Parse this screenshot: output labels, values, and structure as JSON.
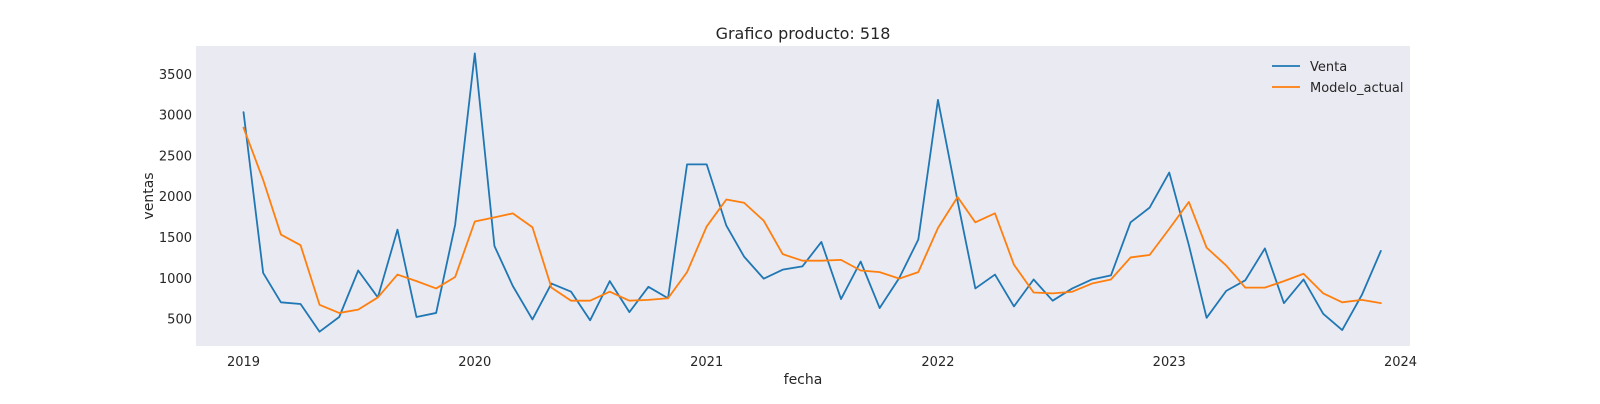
{
  "chart_data": {
    "type": "line",
    "title": "Grafico producto: 518",
    "xlabel": "fecha",
    "ylabel": "ventas",
    "x_ticks": [
      "2019",
      "2020",
      "2021",
      "2022",
      "2023",
      "2024"
    ],
    "y_ticks": [
      500,
      1000,
      1500,
      2000,
      2500,
      3000,
      3500
    ],
    "xlim": [
      "2018-10-18",
      "2024-01-16"
    ],
    "ylim": [
      165,
      3840
    ],
    "grid": false,
    "legend": "top-right",
    "x": [
      "2019-01",
      "2019-02",
      "2019-03",
      "2019-04",
      "2019-05",
      "2019-06",
      "2019-07",
      "2019-08",
      "2019-09",
      "2019-10",
      "2019-11",
      "2019-12",
      "2020-01",
      "2020-02",
      "2020-03",
      "2020-04",
      "2020-05",
      "2020-06",
      "2020-07",
      "2020-08",
      "2020-09",
      "2020-10",
      "2020-11",
      "2020-12",
      "2021-01",
      "2021-02",
      "2021-03",
      "2021-04",
      "2021-05",
      "2021-06",
      "2021-07",
      "2021-08",
      "2021-09",
      "2021-10",
      "2021-11",
      "2021-12",
      "2022-01",
      "2022-02",
      "2022-03",
      "2022-04",
      "2022-05",
      "2022-06",
      "2022-07",
      "2022-08",
      "2022-09",
      "2022-10",
      "2022-11",
      "2022-12",
      "2023-01",
      "2023-02",
      "2023-03",
      "2023-04",
      "2023-05",
      "2023-06",
      "2023-07",
      "2023-08",
      "2023-09",
      "2023-10",
      "2023-11",
      "2023-12"
    ],
    "series": [
      {
        "name": "Venta",
        "color": "#1f77b4",
        "values": [
          3030,
          1060,
          700,
          680,
          340,
          520,
          1090,
          760,
          1590,
          520,
          570,
          1650,
          3750,
          1390,
          900,
          490,
          930,
          830,
          480,
          960,
          580,
          890,
          750,
          2390,
          2390,
          1640,
          1260,
          990,
          1100,
          1140,
          1440,
          740,
          1200,
          630,
          1000,
          1470,
          3180,
          1940,
          870,
          1040,
          650,
          980,
          720,
          870,
          980,
          1030,
          1680,
          1860,
          2290,
          1400,
          510,
          840,
          970,
          1360,
          690,
          980,
          560,
          360,
          790,
          1330
        ]
      },
      {
        "name": "Modelo_actual",
        "color": "#ff7f0e",
        "values": [
          2840,
          2200,
          1530,
          1400,
          670,
          570,
          610,
          760,
          1040,
          960,
          870,
          1010,
          1690,
          1740,
          1790,
          1620,
          880,
          720,
          720,
          830,
          720,
          730,
          750,
          1070,
          1630,
          1960,
          1920,
          1700,
          1290,
          1210,
          1210,
          1220,
          1090,
          1070,
          990,
          1070,
          1610,
          1990,
          1680,
          1790,
          1160,
          820,
          810,
          830,
          930,
          980,
          1250,
          1280,
          1600,
          1930,
          1370,
          1150,
          880,
          880,
          960,
          1050,
          810,
          700,
          730,
          690
        ]
      }
    ]
  },
  "colors": {
    "plot_background": "#eaeaf2",
    "page_background": "#ffffff"
  }
}
